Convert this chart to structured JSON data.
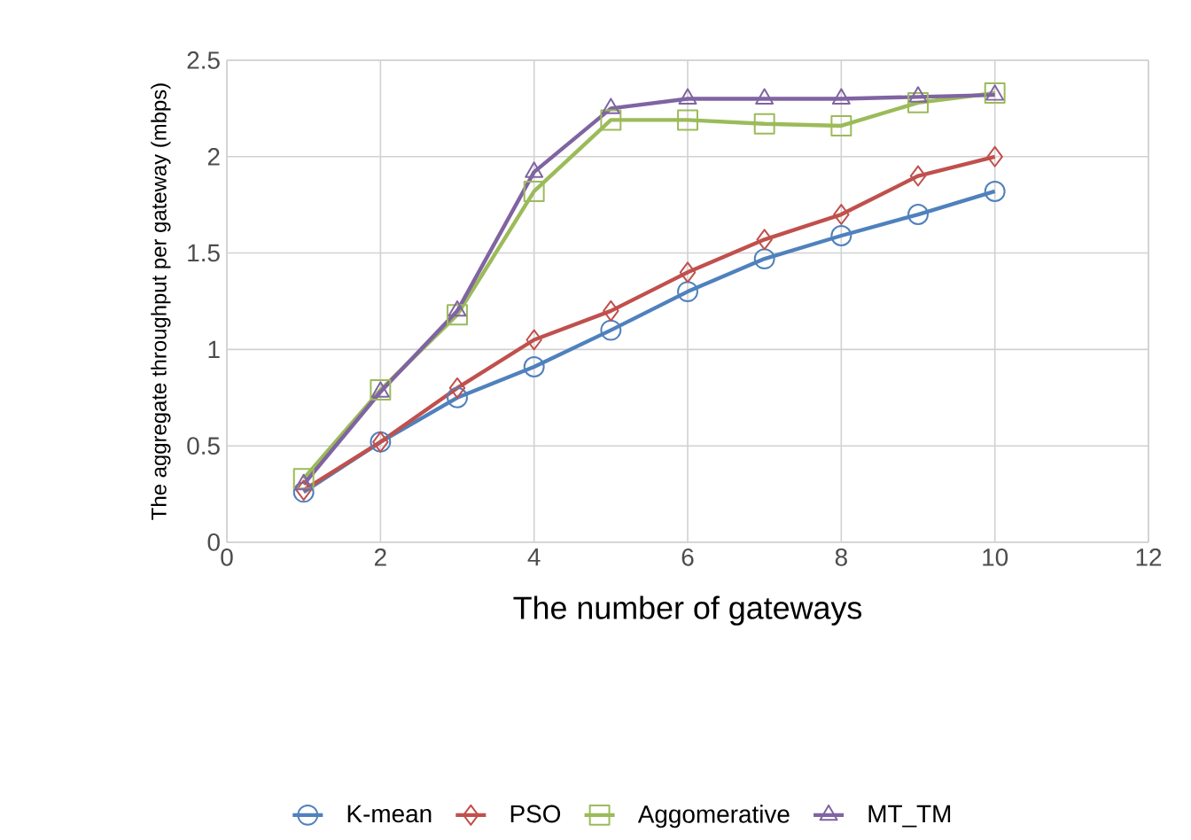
{
  "chart_data": {
    "type": "line",
    "xlabel": "The number of gateways",
    "ylabel": "The aggregate throughput per gateway (mbps)",
    "x": [
      1,
      2,
      3,
      4,
      5,
      6,
      7,
      8,
      9,
      10
    ],
    "series": [
      {
        "name": "K-mean",
        "color": "#4f81bd",
        "marker": "circle",
        "values": [
          0.26,
          0.52,
          0.75,
          0.91,
          1.1,
          1.3,
          1.47,
          1.59,
          1.7,
          1.82
        ]
      },
      {
        "name": "PSO",
        "color": "#c0504d",
        "marker": "diamond",
        "values": [
          0.27,
          0.52,
          0.8,
          1.05,
          1.2,
          1.4,
          1.57,
          1.7,
          1.9,
          2.0
        ]
      },
      {
        "name": "Aggomerative",
        "color": "#9bbb59",
        "marker": "square",
        "values": [
          0.33,
          0.79,
          1.18,
          1.82,
          2.19,
          2.19,
          2.17,
          2.16,
          2.28,
          2.33
        ]
      },
      {
        "name": "MT_TM",
        "color": "#8064a2",
        "marker": "triangle",
        "values": [
          0.3,
          0.78,
          1.2,
          1.92,
          2.25,
          2.3,
          2.3,
          2.3,
          2.31,
          2.32
        ]
      }
    ],
    "xlim": [
      0,
      12
    ],
    "xticks": [
      0,
      2,
      4,
      6,
      8,
      10,
      12
    ],
    "ylim": [
      0,
      2.5
    ],
    "yticks": [
      0,
      0.5,
      1,
      1.5,
      2,
      2.5
    ],
    "grid": true,
    "legend": "bottom",
    "line_style": "solid"
  }
}
